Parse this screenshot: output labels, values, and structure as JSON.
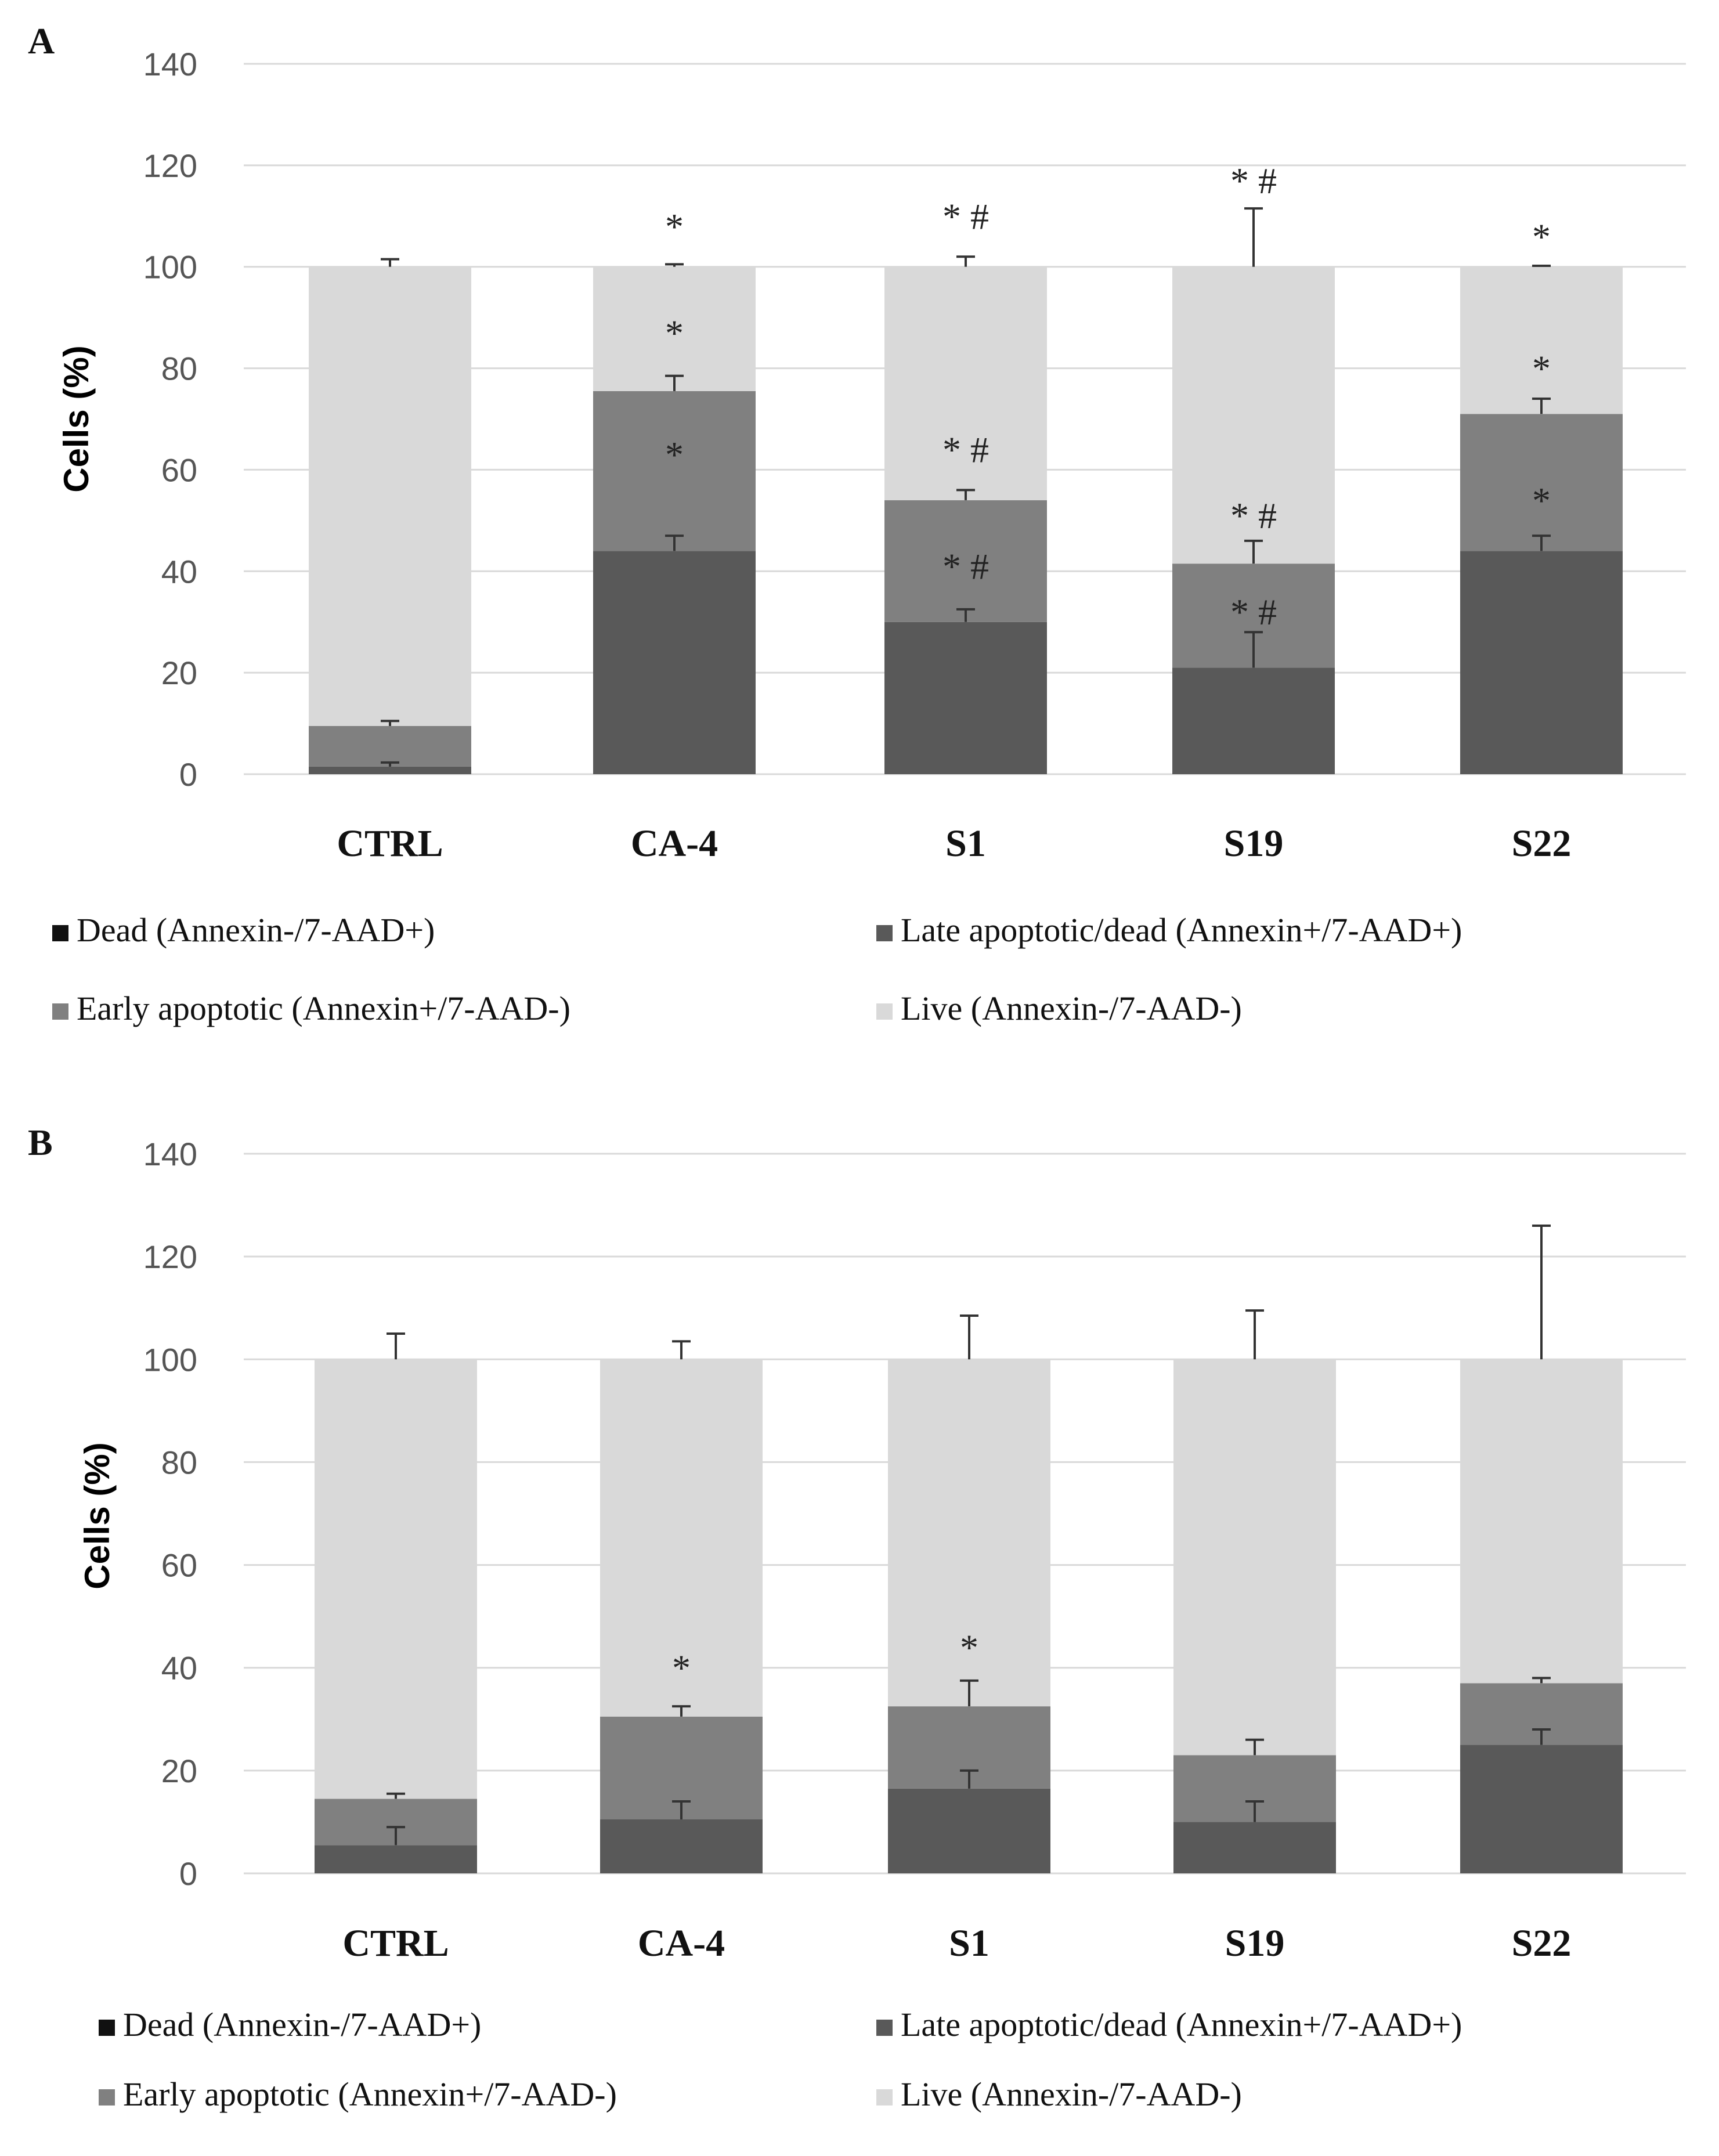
{
  "chart_data": [
    {
      "type": "bar",
      "stacked": true,
      "panel": "A",
      "ylabel": "Cells (%)",
      "ylim": [
        0,
        140
      ],
      "yticks": [
        "0",
        "20",
        "40",
        "60",
        "80",
        "100",
        "120",
        "140"
      ],
      "grid": true,
      "categories": [
        "CTRL",
        "CA-4",
        "S1",
        "S19",
        "S22"
      ],
      "series": [
        {
          "name": "Dead (Annexin-/7-AAD+)",
          "color": "#111111",
          "values": [
            0,
            0,
            0,
            0,
            0
          ],
          "errors": [
            0,
            0,
            0,
            0,
            0
          ]
        },
        {
          "name": "Late apoptotic/dead (Annexin+/7-AAD+)",
          "color": "#595959",
          "values": [
            1.5,
            44,
            30,
            21,
            44
          ],
          "errors": [
            0.8,
            3,
            2.5,
            7,
            3
          ]
        },
        {
          "name": "Early apoptotic (Annexin+/7-AAD-)",
          "color": "#808080",
          "values": [
            8,
            31.5,
            24,
            20.5,
            27
          ],
          "errors": [
            1,
            3,
            2,
            4.5,
            3
          ]
        },
        {
          "name": "Live (Annexin-/7-AAD-)",
          "color": "#d9d9d9",
          "values": [
            90.5,
            24.5,
            46,
            58.5,
            29
          ],
          "errors": [
            1.5,
            0.5,
            2,
            11.5,
            0.2
          ]
        }
      ],
      "annotations": [
        {
          "category": "CA-4",
          "level": 63,
          "text": "*"
        },
        {
          "category": "CA-4",
          "level": 87,
          "text": "*"
        },
        {
          "category": "CA-4",
          "level": 108,
          "text": "*"
        },
        {
          "category": "S1",
          "level": 41,
          "text": "* #"
        },
        {
          "category": "S1",
          "level": 64,
          "text": "* #"
        },
        {
          "category": "S1",
          "level": 110,
          "text": "* #"
        },
        {
          "category": "S19",
          "level": 32,
          "text": "* #"
        },
        {
          "category": "S19",
          "level": 51,
          "text": "* #"
        },
        {
          "category": "S19",
          "level": 117,
          "text": "* #"
        },
        {
          "category": "S22",
          "level": 54,
          "text": "*"
        },
        {
          "category": "S22",
          "level": 80,
          "text": "*"
        },
        {
          "category": "S22",
          "level": 106,
          "text": "*"
        }
      ],
      "legend": "bottom"
    },
    {
      "type": "bar",
      "stacked": true,
      "panel": "B",
      "ylabel": "Cells (%)",
      "ylim": [
        0,
        140
      ],
      "yticks": [
        "0",
        "20",
        "40",
        "60",
        "80",
        "100",
        "120",
        "140"
      ],
      "grid": true,
      "categories": [
        "CTRL",
        "CA-4",
        "S1",
        "S19",
        "S22"
      ],
      "series": [
        {
          "name": "Dead (Annexin-/7-AAD+)",
          "color": "#111111",
          "values": [
            0,
            0,
            0,
            0,
            0
          ],
          "errors": [
            0,
            0,
            0,
            0,
            0
          ]
        },
        {
          "name": "Late apoptotic/dead (Annexin+/7-AAD+)",
          "color": "#595959",
          "values": [
            5.5,
            10.5,
            16.5,
            10,
            25
          ],
          "errors": [
            3.5,
            3.5,
            3.5,
            4,
            3
          ]
        },
        {
          "name": "Early apoptotic (Annexin+/7-AAD-)",
          "color": "#808080",
          "values": [
            9,
            20,
            16,
            13,
            12
          ],
          "errors": [
            1,
            2,
            5,
            3,
            1
          ]
        },
        {
          "name": "Live (Annexin-/7-AAD-)",
          "color": "#d9d9d9",
          "values": [
            85.5,
            69.5,
            67.5,
            77,
            63
          ],
          "errors": [
            5,
            3.5,
            8.5,
            9.5,
            26
          ]
        }
      ],
      "annotations": [
        {
          "category": "CA-4",
          "level": 40,
          "text": "*"
        },
        {
          "category": "S1",
          "level": 44,
          "text": "*"
        }
      ],
      "legend": "bottom"
    }
  ]
}
